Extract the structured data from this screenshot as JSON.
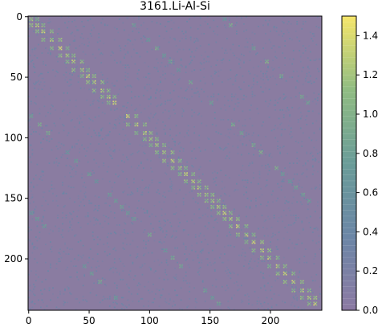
{
  "chart_data": {
    "type": "heatmap",
    "title": "3161.Li-Al-Si",
    "x_ticks": [
      0,
      50,
      100,
      150,
      200
    ],
    "y_ticks": [
      0,
      50,
      100,
      150,
      200
    ],
    "x_range": [
      -0.5,
      242.5
    ],
    "y_range": [
      -0.5,
      242.5
    ],
    "y_inverted": true,
    "grid": false,
    "colormap": "viridis",
    "colorbar": {
      "min": 0.0,
      "max": 1.5,
      "ticks": [
        0.0,
        0.2,
        0.4,
        0.6,
        0.8,
        1.0,
        1.2,
        1.4
      ],
      "tick_labels": [
        "0.0",
        "0.2",
        "0.4",
        "0.6",
        "0.8",
        "1.0",
        "1.2",
        "1.4"
      ]
    },
    "matrix_size": 243,
    "background_value": 0.1,
    "block_pattern": [
      {
        "row_range": [
          0,
          80
        ],
        "col_range": [
          0,
          80
        ],
        "description": "diagonal band of bright 2x2 checker blocks, values up to ~1.4"
      },
      {
        "row_range": [
          80,
          160
        ],
        "col_range": [
          80,
          160
        ],
        "description": "diagonal band of bright 2x2 checker blocks, values up to ~1.4"
      },
      {
        "row_range": [
          160,
          243
        ],
        "col_range": [
          160,
          243
        ],
        "description": "diagonal band of bright 2x2 checker blocks, values up to ~1.4"
      },
      {
        "row_range": [
          0,
          80
        ],
        "col_range": [
          80,
          243
        ],
        "description": "off-diagonal copies, sparser and dimmer"
      },
      {
        "row_range": [
          80,
          243
        ],
        "col_range": [
          0,
          80
        ],
        "description": "off-diagonal copies, sparser and dimmer"
      }
    ]
  }
}
